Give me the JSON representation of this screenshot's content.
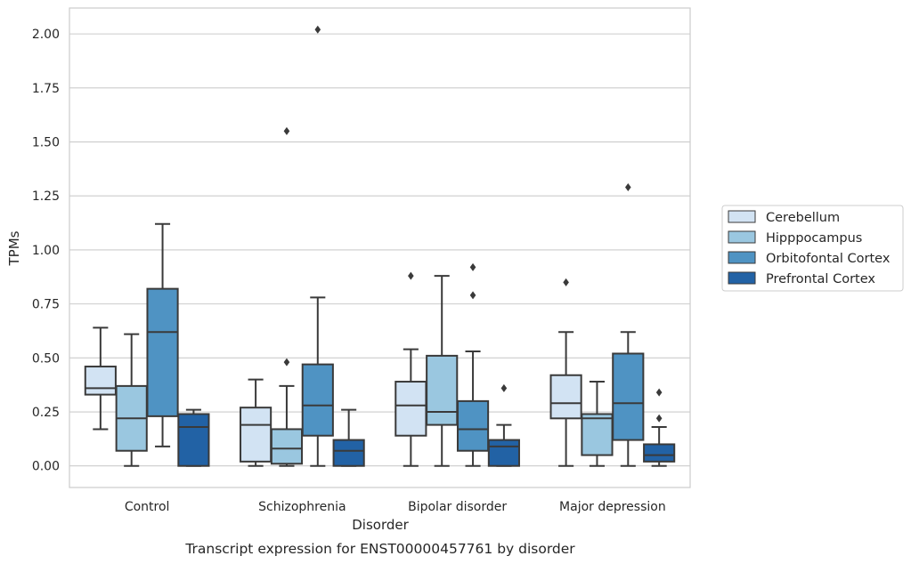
{
  "chart_data": {
    "type": "boxplot",
    "caption": "Transcript expression for ENST00000457761 by disorder",
    "xlabel": "Disorder",
    "ylabel": "TPMs",
    "ylim": [
      -0.1,
      2.12
    ],
    "yticks": [
      "0.00",
      "0.25",
      "0.50",
      "0.75",
      "1.00",
      "1.25",
      "1.50",
      "1.75",
      "2.00"
    ],
    "ytick_values": [
      0,
      0.25,
      0.5,
      0.75,
      1.0,
      1.25,
      1.5,
      1.75,
      2.0
    ],
    "grid": "horizontal",
    "legend_placement": "right",
    "categories": [
      "Control",
      "Schizophrenia",
      "Bipolar disorder",
      "Major depression"
    ],
    "series": [
      {
        "name": "Cerebellum",
        "color": "#d2e3f3",
        "boxes": [
          {
            "whislo": 0.17,
            "q1": 0.33,
            "med": 0.36,
            "q3": 0.46,
            "whishi": 0.64,
            "fliers": []
          },
          {
            "whislo": 0.0,
            "q1": 0.02,
            "med": 0.19,
            "q3": 0.27,
            "whishi": 0.4,
            "fliers": []
          },
          {
            "whislo": 0.0,
            "q1": 0.14,
            "med": 0.28,
            "q3": 0.39,
            "whishi": 0.54,
            "fliers": [
              0.88
            ]
          },
          {
            "whislo": 0.0,
            "q1": 0.22,
            "med": 0.29,
            "q3": 0.42,
            "whishi": 0.62,
            "fliers": [
              0.85
            ]
          }
        ]
      },
      {
        "name": "Hipppocampus",
        "color": "#9ac7e0",
        "boxes": [
          {
            "whislo": 0.0,
            "q1": 0.07,
            "med": 0.22,
            "q3": 0.37,
            "whishi": 0.61,
            "fliers": []
          },
          {
            "whislo": 0.0,
            "q1": 0.01,
            "med": 0.08,
            "q3": 0.17,
            "whishi": 0.37,
            "fliers": [
              0.48,
              1.55
            ]
          },
          {
            "whislo": 0.0,
            "q1": 0.19,
            "med": 0.25,
            "q3": 0.51,
            "whishi": 0.88,
            "fliers": []
          },
          {
            "whislo": 0.0,
            "q1": 0.05,
            "med": 0.22,
            "q3": 0.24,
            "whishi": 0.39,
            "fliers": []
          }
        ]
      },
      {
        "name": "Orbitofontal Cortex",
        "color": "#4f93c3",
        "boxes": [
          {
            "whislo": 0.09,
            "q1": 0.23,
            "med": 0.62,
            "q3": 0.82,
            "whishi": 1.12,
            "fliers": []
          },
          {
            "whislo": 0.0,
            "q1": 0.14,
            "med": 0.28,
            "q3": 0.47,
            "whishi": 0.78,
            "fliers": [
              2.02
            ]
          },
          {
            "whislo": 0.0,
            "q1": 0.07,
            "med": 0.17,
            "q3": 0.3,
            "whishi": 0.53,
            "fliers": [
              0.79,
              0.92
            ]
          },
          {
            "whislo": 0.0,
            "q1": 0.12,
            "med": 0.29,
            "q3": 0.52,
            "whishi": 0.62,
            "fliers": [
              1.29
            ]
          }
        ]
      },
      {
        "name": "Prefrontal Cortex",
        "color": "#2262a5",
        "boxes": [
          {
            "whislo": 0.0,
            "q1": 0.0,
            "med": 0.18,
            "q3": 0.24,
            "whishi": 0.26,
            "fliers": []
          },
          {
            "whislo": 0.0,
            "q1": 0.0,
            "med": 0.07,
            "q3": 0.12,
            "whishi": 0.26,
            "fliers": []
          },
          {
            "whislo": 0.0,
            "q1": 0.0,
            "med": 0.09,
            "q3": 0.12,
            "whishi": 0.19,
            "fliers": [
              0.36
            ]
          },
          {
            "whislo": 0.0,
            "q1": 0.02,
            "med": 0.05,
            "q3": 0.1,
            "whishi": 0.18,
            "fliers": [
              0.22,
              0.34
            ]
          }
        ]
      }
    ]
  }
}
